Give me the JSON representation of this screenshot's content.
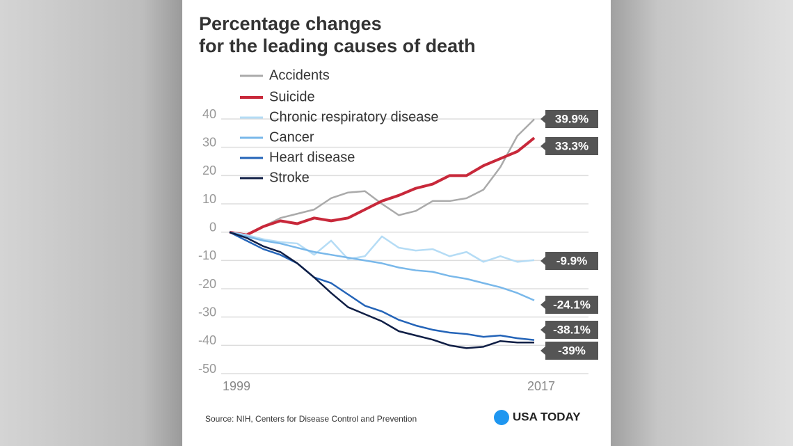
{
  "chart_data": {
    "type": "line",
    "title": [
      "Percentage changes",
      "for the leading causes of death"
    ],
    "x": [
      1999,
      2000,
      2001,
      2002,
      2003,
      2004,
      2005,
      2006,
      2007,
      2008,
      2009,
      2010,
      2011,
      2012,
      2013,
      2014,
      2015,
      2016,
      2017
    ],
    "xlim": [
      1999,
      2017
    ],
    "xticks": [
      1999,
      2017
    ],
    "ylim": [
      -50,
      40
    ],
    "yticks": [
      40,
      30,
      20,
      10,
      0,
      -10,
      -20,
      -30,
      -40,
      -50
    ],
    "grid": true,
    "legend": "top-left",
    "series": [
      {
        "name": "Accidents",
        "color": "#aaaaaa",
        "values": [
          0,
          -1,
          2,
          5,
          6.5,
          8,
          12,
          14,
          14.5,
          10,
          6,
          7.5,
          11,
          11,
          12,
          15,
          23,
          34,
          39.9
        ],
        "value_labels": [
          null,
          null,
          null,
          null,
          null,
          null,
          null,
          null,
          null,
          null,
          null,
          null,
          null,
          null,
          null,
          null,
          null,
          null,
          "39.9%"
        ]
      },
      {
        "name": "Suicide",
        "color": "#c8283a",
        "values": [
          0,
          -1,
          2,
          4,
          3,
          5,
          4,
          5,
          8,
          11,
          13,
          15.5,
          17,
          20,
          20,
          23.5,
          26,
          28.5,
          33.3
        ],
        "value_labels": [
          null,
          null,
          null,
          null,
          null,
          null,
          null,
          null,
          null,
          null,
          null,
          null,
          null,
          null,
          null,
          null,
          null,
          null,
          "33.3%"
        ]
      },
      {
        "name": "Chronic respiratory disease",
        "color": "#b5dcf5",
        "values": [
          0,
          -1,
          -2.5,
          -3.5,
          -4,
          -8,
          -3,
          -9.5,
          -8.5,
          -1.5,
          -5.5,
          -6.5,
          -6,
          -8.5,
          -7,
          -10.5,
          -8.5,
          -10.5,
          -9.9
        ],
        "value_labels": [
          null,
          null,
          null,
          null,
          null,
          null,
          null,
          null,
          null,
          null,
          null,
          null,
          null,
          null,
          null,
          null,
          null,
          null,
          "-9.9%"
        ]
      },
      {
        "name": "Cancer",
        "color": "#79b8ea",
        "values": [
          0,
          -1.5,
          -3,
          -4,
          -5.5,
          -7,
          -8,
          -9,
          -10,
          -11,
          -12.5,
          -13.5,
          -14,
          -15.5,
          -16.5,
          -18,
          -19.5,
          -21.5,
          -24.1
        ],
        "value_labels": [
          null,
          null,
          null,
          null,
          null,
          null,
          null,
          null,
          null,
          null,
          null,
          null,
          null,
          null,
          null,
          null,
          null,
          null,
          "-24.1%"
        ]
      },
      {
        "name": "Heart disease",
        "color": "#2464b8",
        "values": [
          0,
          -3,
          -6,
          -8,
          -11,
          -16,
          -18,
          -22,
          -26,
          -28,
          -31,
          -33,
          -34.5,
          -35.5,
          -36,
          -37,
          -36.5,
          -37.5,
          -38.1
        ],
        "value_labels": [
          null,
          null,
          null,
          null,
          null,
          null,
          null,
          null,
          null,
          null,
          null,
          null,
          null,
          null,
          null,
          null,
          null,
          null,
          "-38.1%"
        ]
      },
      {
        "name": "Stroke",
        "color": "#0f1e45",
        "values": [
          0,
          -2,
          -5,
          -7,
          -11,
          -16,
          -21.5,
          -26.5,
          -29,
          -31.5,
          -35,
          -36.5,
          -38,
          -40,
          -41,
          -40.5,
          -38.5,
          -39,
          -39
        ],
        "value_labels": [
          null,
          null,
          null,
          null,
          null,
          null,
          null,
          null,
          null,
          null,
          null,
          null,
          null,
          null,
          null,
          null,
          null,
          null,
          "-39%"
        ]
      }
    ]
  },
  "source": "Source: NIH, Centers for Disease Control and Prevention",
  "brand": "USA TODAY"
}
